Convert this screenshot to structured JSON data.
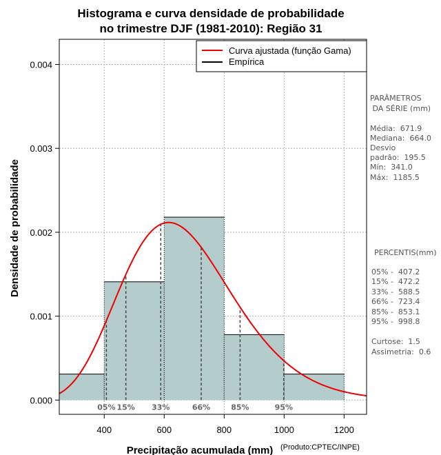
{
  "chart_data": {
    "type": "histogram",
    "title_lines": [
      "Histograma e curva densidade de probabilidade",
      "no trimestre DJF (1981-2010): Região 31"
    ],
    "xlabel": "Precipitação acumulada (mm)",
    "ylabel": "Densidade de probabilidade",
    "credit": "(Produto:CPTEC/INPE)",
    "xlim": [
      250,
      1275
    ],
    "ylim": [
      -0.00017,
      0.0043
    ],
    "x_ticks": [
      400,
      600,
      800,
      1000,
      1200
    ],
    "x_tick_labels": [
      "400",
      "600",
      "800",
      "1000",
      "1200"
    ],
    "y_ticks": [
      0,
      0.001,
      0.002,
      0.003,
      0.004
    ],
    "y_tick_labels": [
      "0.000",
      "0.001",
      "0.002",
      "0.003",
      "0.004"
    ],
    "grid": true,
    "bins": [
      {
        "start": 250,
        "end": 400,
        "density": 0.00031
      },
      {
        "start": 400,
        "end": 600,
        "density": 0.00141
      },
      {
        "start": 600,
        "end": 800,
        "density": 0.00218
      },
      {
        "start": 800,
        "end": 1000,
        "density": 0.00078
      },
      {
        "start": 1000,
        "end": 1200,
        "density": 0.00031
      }
    ],
    "bar_color": "#b4cccc",
    "curve": {
      "name": "Curva ajustada (função Gama)",
      "shape": 11.81,
      "rate": 0.01758,
      "color": "#ee0000"
    },
    "percentile_markers": [
      {
        "label": "05%",
        "value": 407.2
      },
      {
        "label": "15%",
        "value": 472.2
      },
      {
        "label": "33%",
        "value": 588.5
      },
      {
        "label": "66%",
        "value": 723.4
      },
      {
        "label": "85%",
        "value": 853.1
      },
      {
        "label": "95%",
        "value": 998.8
      }
    ],
    "legend": {
      "position": "top-right",
      "entries": [
        {
          "label": "Curva ajustada (função Gama)",
          "color": "#ee0000"
        },
        {
          "label": "Empírica",
          "color": "#000000"
        }
      ]
    }
  },
  "stats_panel": {
    "params_heading": [
      "PARÂMETROS",
      " DA SÉRIE (mm)"
    ],
    "params": [
      "Média:  671.9",
      "Mediana:  664.0",
      "Desvio",
      "padrão:  195.5",
      "Mín:  341.0",
      "Máx:  1185.5"
    ],
    "percentis_heading": "PERCENTIS(mm)",
    "percentis": [
      "05% -  407.2",
      "15% -  472.2",
      "33% -  588.5",
      "66% -  723.4",
      "85% -  853.1",
      "95% -  998.8"
    ],
    "shape_stats": [
      "Curtose:  1.5",
      "Assimetria:  0.6"
    ]
  }
}
